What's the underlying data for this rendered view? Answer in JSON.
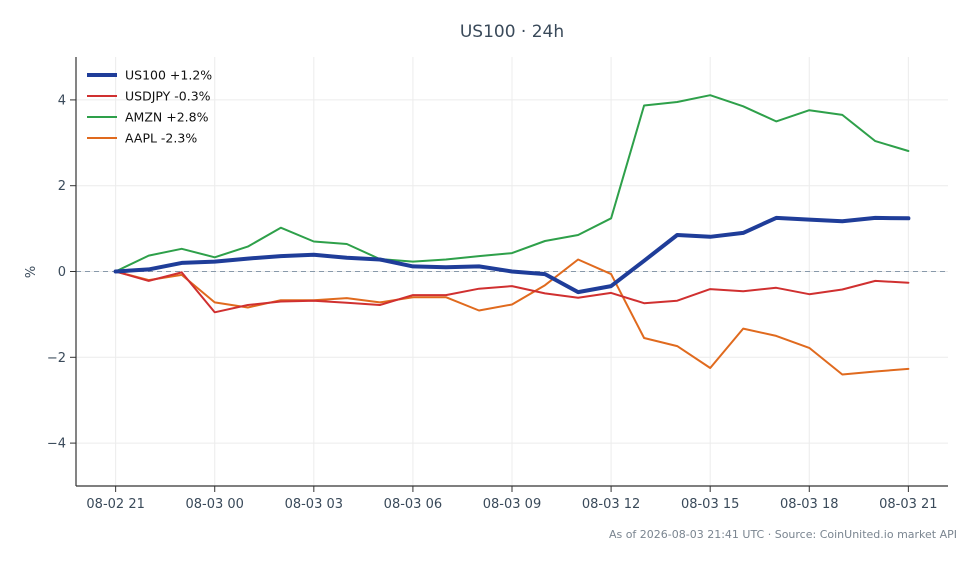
{
  "footer": "As of 2026-08-03 21:41 UTC · Source: CoinUnited.io market API",
  "chart_data": {
    "type": "line",
    "title": "US100 · 24h",
    "xlabel": "",
    "ylabel": "%",
    "xlim": [
      "2026-08-02 19:48",
      "2026-08-03 22:12"
    ],
    "ylim": [
      -5,
      5
    ],
    "x_ticks": [
      "08-02 21",
      "08-03 00",
      "08-03 03",
      "08-03 06",
      "08-03 09",
      "08-03 12",
      "08-03 15",
      "08-03 18",
      "08-03 21"
    ],
    "y_ticks": [
      -4,
      -2,
      0,
      2,
      4
    ],
    "grid": true,
    "zero_line": true,
    "legend_position": "top-left",
    "x": [
      "2026-08-02 21:00",
      "2026-08-02 22:00",
      "2026-08-02 23:00",
      "2026-08-03 00:00",
      "2026-08-03 01:00",
      "2026-08-03 02:00",
      "2026-08-03 03:00",
      "2026-08-03 04:00",
      "2026-08-03 05:00",
      "2026-08-03 06:00",
      "2026-08-03 07:00",
      "2026-08-03 08:00",
      "2026-08-03 09:00",
      "2026-08-03 10:00",
      "2026-08-03 11:00",
      "2026-08-03 12:00",
      "2026-08-03 13:00",
      "2026-08-03 14:00",
      "2026-08-03 15:00",
      "2026-08-03 16:00",
      "2026-08-03 17:00",
      "2026-08-03 18:00",
      "2026-08-03 19:00",
      "2026-08-03 20:00",
      "2026-08-03 21:00"
    ],
    "series": [
      {
        "name": "US100 +1.2%",
        "color": "#1f3d99",
        "width": 4,
        "values": [
          0.0,
          0.05,
          0.2,
          0.23,
          0.3,
          0.36,
          0.39,
          0.32,
          0.28,
          0.12,
          0.1,
          0.12,
          0.0,
          -0.06,
          -0.48,
          -0.34,
          0.25,
          0.85,
          0.81,
          0.9,
          1.25,
          1.21,
          1.17,
          1.25,
          1.24
        ]
      },
      {
        "name": "USDJPY -0.3%",
        "color": "#d03030",
        "width": 2,
        "values": [
          0.0,
          -0.22,
          -0.02,
          -0.95,
          -0.78,
          -0.7,
          -0.68,
          -0.73,
          -0.78,
          -0.55,
          -0.55,
          -0.4,
          -0.34,
          -0.51,
          -0.61,
          -0.5,
          -0.74,
          -0.68,
          -0.41,
          -0.46,
          -0.38,
          -0.53,
          -0.42,
          -0.22,
          -0.26
        ]
      },
      {
        "name": "AMZN +2.8%",
        "color": "#2ea04a",
        "width": 2,
        "values": [
          0.0,
          0.37,
          0.53,
          0.33,
          0.58,
          1.02,
          0.7,
          0.64,
          0.29,
          0.23,
          0.28,
          0.36,
          0.43,
          0.71,
          0.85,
          1.24,
          3.87,
          3.95,
          4.11,
          3.85,
          3.5,
          3.76,
          3.65,
          3.04,
          2.81
        ]
      },
      {
        "name": "AAPL -2.3%",
        "color": "#e06a1e",
        "width": 2,
        "values": [
          0.0,
          -0.2,
          -0.08,
          -0.72,
          -0.84,
          -0.67,
          -0.67,
          -0.62,
          -0.72,
          -0.6,
          -0.6,
          -0.91,
          -0.77,
          -0.32,
          0.28,
          -0.06,
          -1.55,
          -1.74,
          -2.25,
          -1.33,
          -1.5,
          -1.78,
          -2.4,
          -2.33,
          -2.27
        ]
      }
    ]
  }
}
